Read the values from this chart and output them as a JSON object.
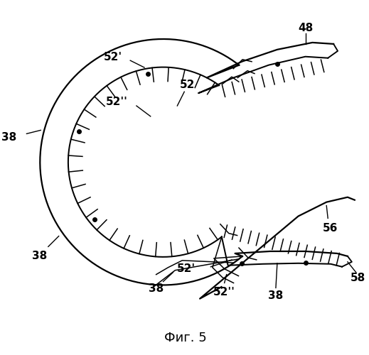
{
  "background_color": "#ffffff",
  "line_color": "#000000",
  "fig_width": 5.19,
  "fig_height": 5.0,
  "dpi": 100,
  "title": "Фиг. 5"
}
